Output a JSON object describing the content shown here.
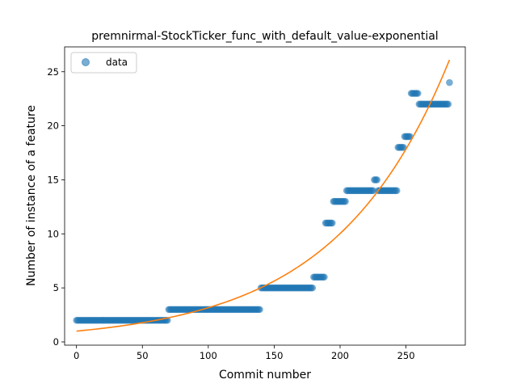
{
  "chart_data": {
    "type": "scatter",
    "title": "premnirmal-StockTicker_func_with_default_value-exponential",
    "xlabel": "Commit number",
    "ylabel": "Number of instance of a feature",
    "xlim": [
      -9,
      295
    ],
    "ylim": [
      -0.3,
      27.3
    ],
    "xticks": [
      0,
      50,
      100,
      150,
      200,
      250
    ],
    "yticks": [
      0,
      5,
      10,
      15,
      20,
      25
    ],
    "grid": false,
    "legend": {
      "position": "top-left",
      "entries": [
        "data"
      ]
    },
    "series": [
      {
        "name": "data",
        "kind": "points",
        "color": "#1f77b4",
        "segments": [
          {
            "x_start": 0,
            "x_end": 69,
            "y": 2
          },
          {
            "x_start": 70,
            "x_end": 139,
            "y": 3
          },
          {
            "x_start": 140,
            "x_end": 179,
            "y": 5
          },
          {
            "x_start": 180,
            "x_end": 188,
            "y": 6
          },
          {
            "x_start": 189,
            "x_end": 194,
            "y": 11
          },
          {
            "x_start": 195,
            "x_end": 204,
            "y": 13
          },
          {
            "x_start": 205,
            "x_end": 225,
            "y": 14
          },
          {
            "x_start": 226,
            "x_end": 228,
            "y": 15
          },
          {
            "x_start": 229,
            "x_end": 243,
            "y": 14
          },
          {
            "x_start": 244,
            "x_end": 248,
            "y": 18
          },
          {
            "x_start": 249,
            "x_end": 253,
            "y": 19
          },
          {
            "x_start": 254,
            "x_end": 259,
            "y": 23
          },
          {
            "x_start": 260,
            "x_end": 282,
            "y": 22
          },
          {
            "x_start": 283,
            "x_end": 283,
            "y": 24
          }
        ]
      },
      {
        "kind": "fit",
        "color": "#ff7f0e",
        "model": "exponential",
        "x_range": [
          0,
          283
        ],
        "y_start": 1.0,
        "y_end": 26.1
      }
    ]
  }
}
